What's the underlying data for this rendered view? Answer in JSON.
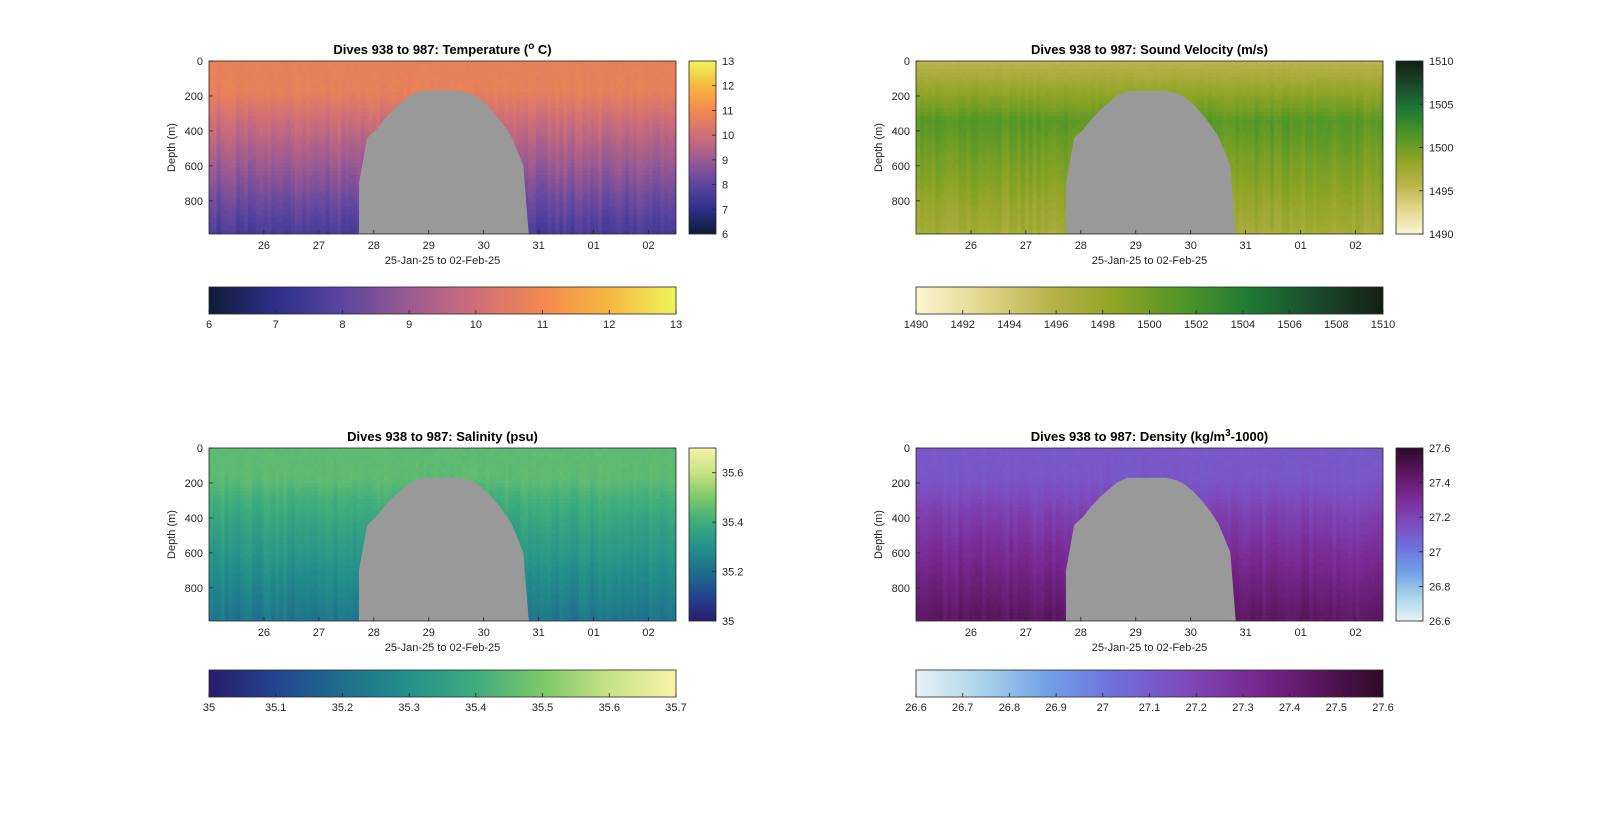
{
  "chart_data": [
    {
      "type": "heatmap",
      "title": "Dives 938 to 987: Temperature (",
      "title_sup": "o",
      "title_end": " C)",
      "ylabel": "Depth (m)",
      "xlabel": "25-Jan-25 to 02-Feb-25",
      "x_ticks": [
        "26",
        "27",
        "28",
        "29",
        "30",
        "31",
        "01",
        "02"
      ],
      "xlim": [
        25.0,
        33.5
      ],
      "y_ticks": [
        "0",
        "200",
        "400",
        "600",
        "800"
      ],
      "ylim": [
        0,
        990
      ],
      "y_reversed": true,
      "side_colorbar_ticks": [
        "6",
        "7",
        "8",
        "9",
        "10",
        "11",
        "12",
        "13"
      ],
      "bottom_colorbar_ticks": [
        "6",
        "7",
        "8",
        "9",
        "10",
        "11",
        "12",
        "13"
      ],
      "clim": [
        6,
        13
      ],
      "surface_value": 10.7,
      "deep_value": 7.6,
      "colormap": [
        "#0f1b35",
        "#2d2f8a",
        "#5b45a0",
        "#9b5a93",
        "#cf6e78",
        "#f3894f",
        "#f7b73f",
        "#eef55a"
      ],
      "gap_color": "#999999"
    },
    {
      "type": "heatmap",
      "title": "Dives 938 to 987: Sound Velocity (m/s)",
      "ylabel": "Depth (m)",
      "xlabel": "25-Jan-25 to 02-Feb-25",
      "x_ticks": [
        "26",
        "27",
        "28",
        "29",
        "30",
        "31",
        "01",
        "02"
      ],
      "xlim": [
        25.0,
        33.5
      ],
      "y_ticks": [
        "0",
        "200",
        "400",
        "600",
        "800"
      ],
      "ylim": [
        0,
        990
      ],
      "y_reversed": true,
      "side_colorbar_ticks": [
        "1490",
        "1495",
        "1500",
        "1505",
        "1510"
      ],
      "bottom_colorbar_ticks": [
        "1490",
        "1492",
        "1494",
        "1496",
        "1498",
        "1500",
        "1502",
        "1504",
        "1506",
        "1508",
        "1510"
      ],
      "clim": [
        1490,
        1510
      ],
      "surface_value": 1495.5,
      "mid_value": 1501.0,
      "deep_value": 1497.0,
      "colormap": [
        "#fbf6d0",
        "#e2d68c",
        "#b9b34a",
        "#8fa424",
        "#4f9628",
        "#1e7a35",
        "#1b4a2c",
        "#141e14"
      ],
      "gap_color": "#999999"
    },
    {
      "type": "heatmap",
      "title": "Dives 938 to 987: Salinity (psu)",
      "ylabel": "Depth (m)",
      "xlabel": "25-Jan-25 to 02-Feb-25",
      "x_ticks": [
        "26",
        "27",
        "28",
        "29",
        "30",
        "31",
        "01",
        "02"
      ],
      "xlim": [
        25.0,
        33.5
      ],
      "y_ticks": [
        "0",
        "200",
        "400",
        "600",
        "800"
      ],
      "ylim": [
        0,
        990
      ],
      "y_reversed": true,
      "side_colorbar_ticks": [
        "35",
        "35.2",
        "35.4",
        "35.6"
      ],
      "bottom_colorbar_ticks": [
        "35",
        "35.1",
        "35.2",
        "35.3",
        "35.4",
        "35.5",
        "35.6",
        "35.7"
      ],
      "clim": [
        35.0,
        35.7
      ],
      "surface_value": 35.45,
      "deep_value": 35.22,
      "colormap": [
        "#2a1b6e",
        "#22458f",
        "#1e6e8c",
        "#24918b",
        "#3eac7d",
        "#7cc868",
        "#c7e285",
        "#f8f3a8"
      ],
      "gap_color": "#999999"
    },
    {
      "type": "heatmap",
      "title": "Dives 938 to 987: Density (kg/m",
      "title_sup": "3",
      "title_end": "-1000)",
      "ylabel": "Depth (m)",
      "xlabel": "25-Jan-25 to 02-Feb-25",
      "x_ticks": [
        "26",
        "27",
        "28",
        "29",
        "30",
        "31",
        "01",
        "02"
      ],
      "xlim": [
        25.0,
        33.5
      ],
      "y_ticks": [
        "0",
        "200",
        "400",
        "600",
        "800"
      ],
      "ylim": [
        0,
        990
      ],
      "y_reversed": true,
      "side_colorbar_ticks": [
        "26.6",
        "26.8",
        "27",
        "27.2",
        "27.4",
        "27.6"
      ],
      "bottom_colorbar_ticks": [
        "26.6",
        "26.7",
        "26.8",
        "26.9",
        "27",
        "27.1",
        "27.2",
        "27.3",
        "27.4",
        "27.5",
        "27.6"
      ],
      "clim": [
        26.6,
        27.6
      ],
      "surface_value": 27.12,
      "deep_value": 27.45,
      "colormap": [
        "#e8f3f5",
        "#a9d3ea",
        "#6f9fe6",
        "#6f6fdc",
        "#7e4bbd",
        "#7a2a94",
        "#5c1660",
        "#2e0a26"
      ],
      "gap_color": "#999999"
    }
  ]
}
